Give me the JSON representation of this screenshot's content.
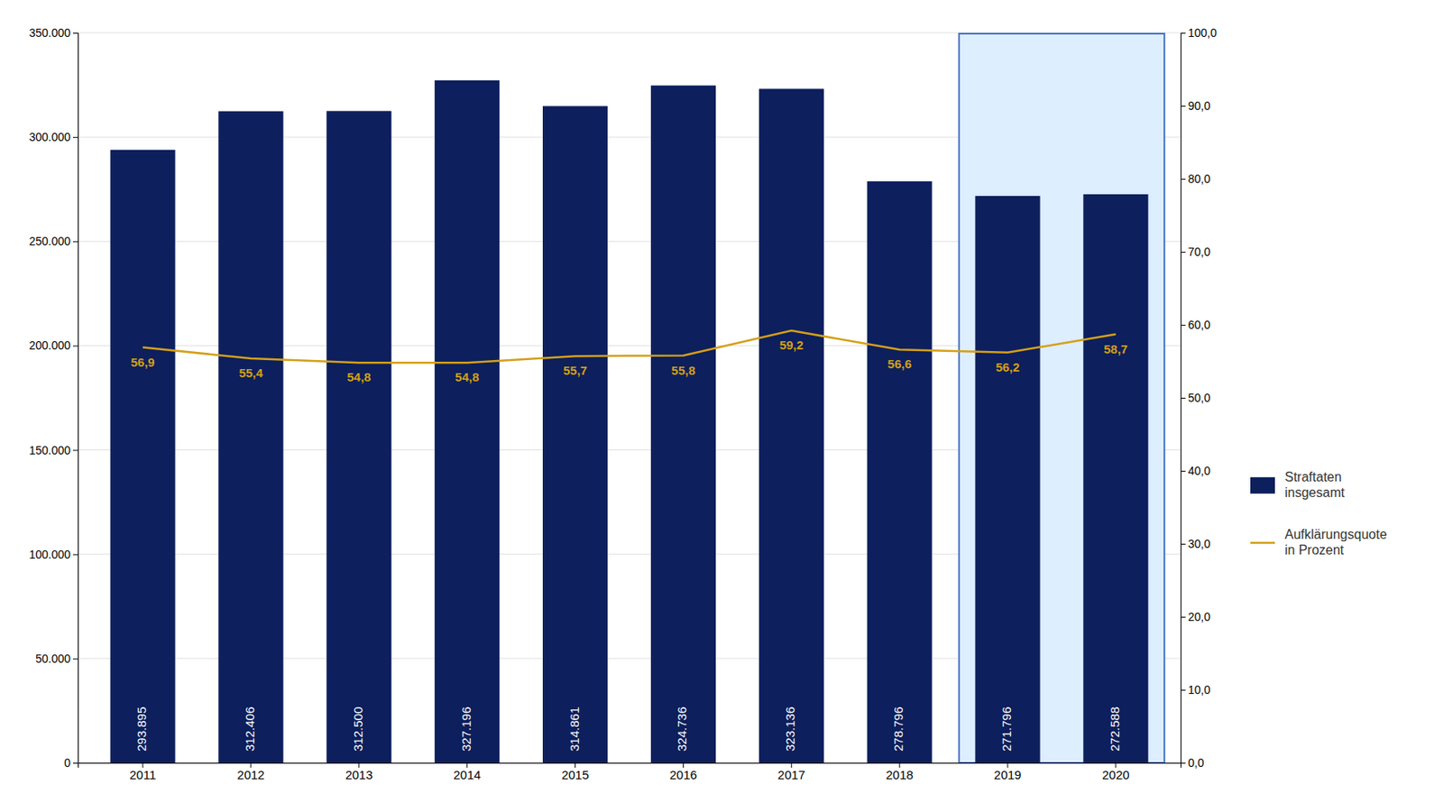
{
  "chart_data": {
    "type": "bar",
    "categories": [
      "2011",
      "2012",
      "2013",
      "2014",
      "2015",
      "2016",
      "2017",
      "2018",
      "2019",
      "2020"
    ],
    "series": [
      {
        "name": "Straftaten\ninsgesamt",
        "type": "bar",
        "color": "#0d1f5c",
        "values": [
          293895,
          312406,
          312500,
          327196,
          314861,
          324736,
          323136,
          278796,
          271796,
          272588
        ],
        "value_labels": [
          "293.895",
          "312.406",
          "312.500",
          "327.196",
          "314.861",
          "324.736",
          "323.136",
          "278.796",
          "271.796",
          "272.588"
        ]
      },
      {
        "name": "Aufklärungsquote\nin Prozent",
        "type": "line",
        "axis": "y2",
        "color": "#d4a017",
        "values": [
          56.9,
          55.4,
          54.8,
          54.8,
          55.7,
          55.8,
          59.2,
          56.6,
          56.2,
          58.7
        ],
        "value_labels": [
          "56,9",
          "55,4",
          "54,8",
          "54,8",
          "55,7",
          "55,8",
          "59,2",
          "56,6",
          "56,2",
          "58,7"
        ]
      }
    ],
    "ylim": [
      0,
      350000
    ],
    "yticks": [
      0,
      {
        "value": 50000,
        "label": "50.000"
      },
      {
        "value": 100000,
        "label": "100.000"
      },
      {
        "value": 150000,
        "label": "150.000"
      },
      {
        "value": 200000,
        "label": "200.000"
      },
      {
        "value": 250000,
        "label": "250.000"
      },
      {
        "value": 300000,
        "label": "300.000"
      },
      {
        "value": 350000,
        "label": "350.000"
      }
    ],
    "y2lim": [
      0,
      100.0
    ],
    "y2ticks": [
      {
        "value": 0.0,
        "label": "0,0"
      },
      {
        "value": 10.0,
        "label": "10,0"
      },
      {
        "value": 20.0,
        "label": "20,0"
      },
      {
        "value": 30.0,
        "label": "30,0"
      },
      {
        "value": 40.0,
        "label": "40,0"
      },
      {
        "value": 50.0,
        "label": "50,0"
      },
      {
        "value": 60.0,
        "label": "60,0"
      },
      {
        "value": 70.0,
        "label": "70,0"
      },
      {
        "value": 80.0,
        "label": "80,0"
      },
      {
        "value": 90.0,
        "label": "90,0"
      },
      {
        "value": 100.0,
        "label": "100,0"
      }
    ],
    "highlight": {
      "categories": [
        "2019",
        "2020"
      ],
      "color": "#ddeeff",
      "border_color": "#4472c4"
    },
    "grid": true,
    "legend": "right",
    "data_labels": true
  }
}
